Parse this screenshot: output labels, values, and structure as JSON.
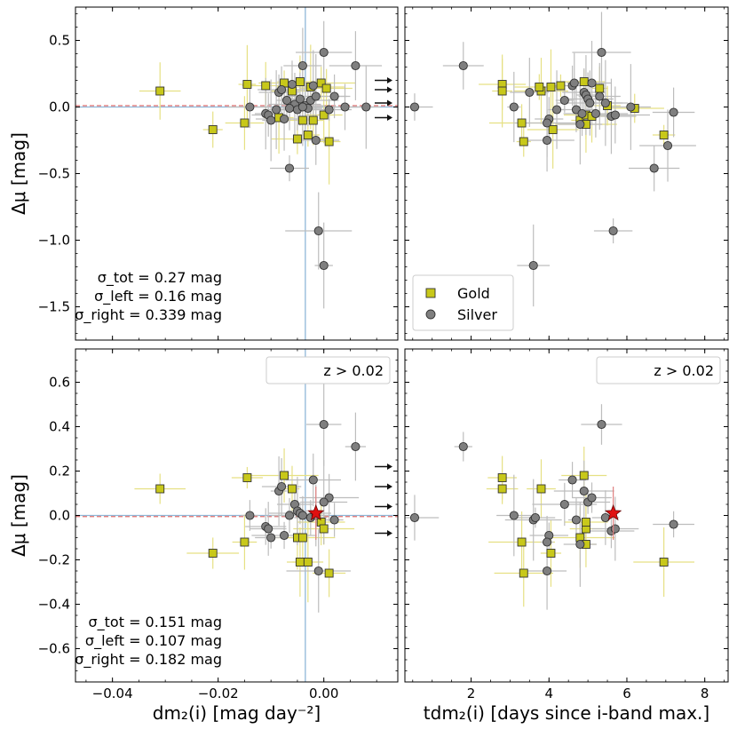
{
  "chart_data": [
    {
      "type": "scatter",
      "panel": "top-left",
      "ylabel": "Δμ [mag]",
      "xlabel": "",
      "xlim": [
        -0.047,
        0.014
      ],
      "ylim": [
        -1.75,
        0.75
      ],
      "yticks": [
        0.5,
        0.0,
        -0.5,
        -1.0,
        -1.5
      ],
      "ytick_labels": [
        "0.5",
        "0.0",
        "−0.5",
        "−1.0",
        "−1.5"
      ],
      "xticks": [
        -0.04,
        -0.02,
        0.0
      ],
      "vertical_line_x": -0.0035,
      "horizontal_lines": [
        0.0,
        0.01
      ],
      "stats": [
        "σ_tot = 0.27 mag",
        "σ_left = 0.16 mag",
        "σ_right = 0.339 mag"
      ],
      "series": [
        {
          "name": "Gold",
          "x": [
            -0.031,
            -0.021,
            -0.015,
            -0.0145,
            -0.011,
            -0.0085,
            -0.0075,
            -0.006,
            -0.005,
            -0.0045,
            -0.003,
            -0.0025,
            -0.002,
            -0.0005,
            0.0,
            0.0005,
            0.001,
            -0.004
          ],
          "y": [
            0.12,
            -0.17,
            -0.12,
            0.17,
            0.16,
            -0.08,
            0.18,
            0.12,
            -0.24,
            0.19,
            -0.21,
            0.15,
            -0.1,
            0.18,
            -0.06,
            0.14,
            -0.26,
            -0.1
          ]
        },
        {
          "name": "Silver",
          "x": [
            -0.014,
            -0.011,
            -0.0105,
            -0.01,
            -0.009,
            -0.0085,
            -0.008,
            -0.0075,
            -0.007,
            -0.0065,
            -0.006,
            -0.0055,
            -0.005,
            -0.0045,
            -0.004,
            -0.0035,
            -0.003,
            -0.0025,
            -0.002,
            -0.0015,
            -0.001,
            0.0,
            0.001,
            0.002,
            0.004,
            0.006,
            0.008,
            -0.0065,
            -0.0015,
            0.0,
            -0.004
          ],
          "y": [
            0.0,
            -0.05,
            -0.06,
            -0.1,
            -0.02,
            0.11,
            0.13,
            -0.09,
            0.05,
            -0.46,
            0.17,
            0.02,
            -0.02,
            0.06,
            0.31,
            0.01,
            -0.01,
            0.05,
            0.16,
            0.08,
            -0.93,
            0.41,
            -0.02,
            0.08,
            0.0,
            0.31,
            0.0,
            -0.01,
            -0.25,
            -1.19,
            0.0
          ]
        }
      ],
      "arrows_y": [
        0.2,
        0.13,
        0.03,
        -0.08
      ]
    },
    {
      "type": "scatter",
      "panel": "top-right",
      "xlim": [
        0.3,
        8.6
      ],
      "ylim": [
        -1.75,
        0.75
      ],
      "legend": {
        "placement": "lower-left",
        "entries": [
          "Gold",
          "Silver"
        ]
      },
      "series": [
        {
          "name": "Gold",
          "x": [
            2.8,
            2.8,
            3.3,
            3.35,
            3.8,
            4.1,
            4.05,
            4.3,
            4.8,
            4.95,
            4.95,
            4.9,
            5.1,
            5.3,
            5.5,
            6.2,
            6.95,
            3.75
          ],
          "y": [
            0.17,
            0.12,
            -0.12,
            -0.26,
            0.12,
            -0.17,
            0.15,
            0.16,
            -0.1,
            -0.06,
            -0.13,
            0.19,
            -0.07,
            0.14,
            0.01,
            -0.01,
            -0.21,
            0.15
          ]
        },
        {
          "name": "Silver",
          "x": [
            0.55,
            1.8,
            3.1,
            3.5,
            3.6,
            3.95,
            4.0,
            4.2,
            4.4,
            4.6,
            4.65,
            4.7,
            4.8,
            4.9,
            4.95,
            5.0,
            5.05,
            5.1,
            5.2,
            5.3,
            5.35,
            5.45,
            5.6,
            5.65,
            5.7,
            6.7,
            7.05,
            7.2,
            3.95,
            4.85,
            6.1
          ],
          "y": [
            0.0,
            0.31,
            0.0,
            0.11,
            -1.19,
            -0.25,
            -0.09,
            -0.02,
            0.05,
            0.16,
            0.18,
            -0.02,
            -0.13,
            0.11,
            0.09,
            0.06,
            0.03,
            0.18,
            -0.05,
            0.08,
            0.41,
            0.03,
            -0.07,
            -0.93,
            -0.06,
            -0.46,
            -0.29,
            -0.04,
            -0.12,
            -0.05,
            0.0
          ]
        }
      ]
    },
    {
      "type": "scatter",
      "panel": "bottom-left",
      "ylabel": "Δμ [mag]",
      "xlabel": "dm₂(i) [mag day⁻²]",
      "xlim": [
        -0.047,
        0.014
      ],
      "ylim": [
        -0.75,
        0.75
      ],
      "yticks": [
        0.6,
        0.4,
        0.2,
        0.0,
        -0.2,
        -0.4,
        -0.6
      ],
      "ytick_labels": [
        "0.6",
        "0.4",
        "0.2",
        "0.0",
        "−0.2",
        "−0.4",
        "−0.6"
      ],
      "xticks": [
        -0.04,
        -0.02,
        0.0
      ],
      "xtick_labels": [
        "−0.04",
        "−0.02",
        "0.00"
      ],
      "vertical_line_x": -0.0035,
      "horizontal_lines": [
        0.0,
        -0.005
      ],
      "legend_text": "z > 0.02",
      "stats": [
        "σ_tot = 0.151 mag",
        "σ_left = 0.107 mag",
        "σ_right = 0.182 mag"
      ],
      "star": {
        "x": -0.0015,
        "y": 0.01
      },
      "series": [
        {
          "name": "Gold",
          "x": [
            -0.031,
            -0.021,
            -0.015,
            -0.0145,
            -0.0075,
            -0.006,
            -0.005,
            -0.0045,
            -0.003,
            -0.0005,
            0.0,
            0.001,
            -0.004
          ],
          "y": [
            0.12,
            -0.17,
            -0.12,
            0.17,
            0.18,
            0.12,
            -0.1,
            -0.21,
            -0.21,
            -0.03,
            -0.06,
            -0.26,
            -0.1
          ]
        },
        {
          "name": "Silver",
          "x": [
            -0.014,
            -0.011,
            -0.0105,
            -0.01,
            -0.0085,
            -0.008,
            -0.0075,
            -0.0065,
            -0.0055,
            -0.005,
            -0.0045,
            -0.004,
            -0.0025,
            -0.002,
            -0.0015,
            -0.001,
            0.0,
            0.001,
            0.002,
            0.006,
            0.0
          ],
          "y": [
            0.0,
            -0.05,
            -0.06,
            -0.1,
            0.11,
            0.13,
            -0.09,
            0.0,
            0.05,
            0.02,
            0.01,
            0.0,
            -0.01,
            0.16,
            0.0,
            -0.25,
            0.41,
            0.08,
            -0.02,
            0.31,
            0.06
          ]
        }
      ],
      "arrows_y": [
        0.22,
        0.13,
        0.04,
        -0.08
      ]
    },
    {
      "type": "scatter",
      "panel": "bottom-right",
      "xlabel": "tdm₂(i) [days since i-band max.]",
      "xlim": [
        0.3,
        8.6
      ],
      "ylim": [
        -0.75,
        0.75
      ],
      "xticks": [
        2,
        4,
        6,
        8
      ],
      "xtick_labels": [
        "2",
        "4",
        "6",
        "8"
      ],
      "legend_text": "z > 0.02",
      "star": {
        "x": 5.65,
        "y": 0.01
      },
      "series": [
        {
          "name": "Gold",
          "x": [
            2.8,
            2.8,
            3.3,
            3.35,
            3.8,
            4.05,
            4.8,
            4.95,
            4.9,
            4.95,
            6.95,
            4.95
          ],
          "y": [
            0.17,
            0.12,
            -0.12,
            -0.26,
            0.12,
            -0.17,
            -0.1,
            -0.06,
            0.18,
            -0.13,
            -0.21,
            -0.03
          ]
        },
        {
          "name": "Silver",
          "x": [
            0.55,
            1.8,
            3.1,
            3.6,
            3.95,
            4.0,
            4.4,
            4.6,
            4.7,
            4.8,
            4.9,
            5.0,
            5.1,
            5.35,
            5.45,
            5.6,
            5.7,
            7.2,
            3.95,
            3.65
          ],
          "y": [
            -0.01,
            0.31,
            0.0,
            -0.02,
            -0.25,
            -0.09,
            0.05,
            0.16,
            -0.02,
            -0.13,
            0.11,
            0.06,
            0.08,
            0.41,
            -0.01,
            -0.07,
            -0.06,
            -0.04,
            -0.12,
            -0.01
          ]
        }
      ]
    }
  ],
  "colors": {
    "gold": "#c8c81a",
    "gold_bar": "#e6e083",
    "silver": "#7f7f7f",
    "silver_bar": "#bdbdbd",
    "vline": "#8fb7d8",
    "hline_red": "#e07070",
    "star": "#e01010"
  }
}
